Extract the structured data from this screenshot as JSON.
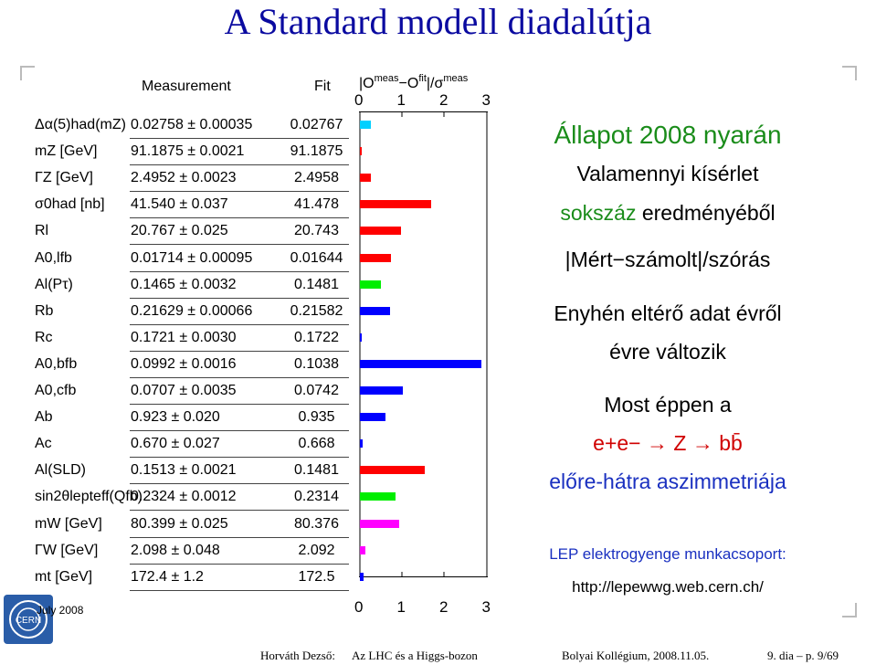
{
  "title": "A Standard modell diadalútja",
  "table": {
    "header_measurement": "Measurement",
    "header_fit": "Fit",
    "header_pull": "|O meas − O fit |/σ meas",
    "axis_ticks": [
      "0",
      "1",
      "2",
      "3"
    ],
    "rows": [
      {
        "label": "Δα(5)had(mZ)",
        "measurement": "0.02758 ± 0.00035",
        "fit": "0.02767",
        "pull": 0.26,
        "color": "#00d0ff"
      },
      {
        "label": "mZ [GeV]",
        "measurement": "91.1875 ± 0.0021",
        "fit": "91.1875",
        "pull": 0.0,
        "color": "#ff0000"
      },
      {
        "label": "ΓZ [GeV]",
        "measurement": "2.4952 ± 0.0023",
        "fit": "2.4958",
        "pull": 0.26,
        "color": "#ff0000"
      },
      {
        "label": "σ0had [nb]",
        "measurement": "41.540 ± 0.037",
        "fit": "41.478",
        "pull": 1.68,
        "color": "#ff0000"
      },
      {
        "label": "Rl",
        "measurement": "20.767 ± 0.025",
        "fit": "20.743",
        "pull": 0.96,
        "color": "#ff0000"
      },
      {
        "label": "A0,lfb",
        "measurement": "0.01714 ± 0.00095",
        "fit": "0.01644",
        "pull": 0.74,
        "color": "#ff0000"
      },
      {
        "label": "Al(Pτ)",
        "measurement": "0.1465 ± 0.0032",
        "fit": "0.1481",
        "pull": 0.5,
        "color": "#00ee00"
      },
      {
        "label": "Rb",
        "measurement": "0.21629 ± 0.00066",
        "fit": "0.21582",
        "pull": 0.71,
        "color": "#0000ff"
      },
      {
        "label": "Rc",
        "measurement": "0.1721 ± 0.0030",
        "fit": "0.1722",
        "pull": 0.03,
        "color": "#0000ff"
      },
      {
        "label": "A0,bfb",
        "measurement": "0.0992 ± 0.0016",
        "fit": "0.1038",
        "pull": 2.87,
        "color": "#0000ff"
      },
      {
        "label": "A0,cfb",
        "measurement": "0.0707 ± 0.0035",
        "fit": "0.0742",
        "pull": 1.0,
        "color": "#0000ff"
      },
      {
        "label": "Ab",
        "measurement": "0.923 ± 0.020",
        "fit": "0.935",
        "pull": 0.6,
        "color": "#0000ff"
      },
      {
        "label": "Ac",
        "measurement": "0.670 ± 0.027",
        "fit": "0.668",
        "pull": 0.07,
        "color": "#0000ff"
      },
      {
        "label": "Al(SLD)",
        "measurement": "0.1513 ± 0.0021",
        "fit": "0.1481",
        "pull": 1.52,
        "color": "#ff0000"
      },
      {
        "label": "sin2θlepteff(Qfb)",
        "measurement": "0.2324 ± 0.0012",
        "fit": "0.2314",
        "pull": 0.83,
        "color": "#00ee00"
      },
      {
        "label": "mW [GeV]",
        "measurement": "80.399 ± 0.025",
        "fit": "80.376",
        "pull": 0.92,
        "color": "#ff00ff"
      },
      {
        "label": "ΓW [GeV]",
        "measurement": "2.098 ± 0.048",
        "fit": "2.092",
        "pull": 0.13,
        "color": "#ff00ff"
      },
      {
        "label": "mt [GeV]",
        "measurement": "172.4 ± 1.2",
        "fit": "172.5",
        "pull": 0.08,
        "color": "#0000ff"
      }
    ],
    "date_label": "July 2008"
  },
  "side": {
    "line1": "Állapot 2008 nyarán",
    "line2": "Valamennyi kísérlet",
    "line3": "sokszáz eredményéből",
    "line4": "|Mért−számolt|/szórás",
    "line5": "Enyhén eltérő adat évről",
    "line6": "évre változik",
    "line7": "Most éppen a",
    "line8": "e+e− → Z → bb̄",
    "line9": "előre-hátra aszimmetriája",
    "line10": "LEP elektrogyenge munkacsoport:",
    "line11": "http://lepewwg.web.cern.ch/"
  },
  "footer": {
    "author": "Horváth Dezső:",
    "talk": "Az LHC és a Higgs-bozon",
    "venue": "Bolyai Kollégium, 2008.11.05.",
    "page": "9. dia – p. 9/69"
  },
  "colors": {
    "title": "#0a0aa0",
    "green_text": "#1a8c1a",
    "blue_text": "#1a30c0",
    "red_text": "#d00000"
  }
}
